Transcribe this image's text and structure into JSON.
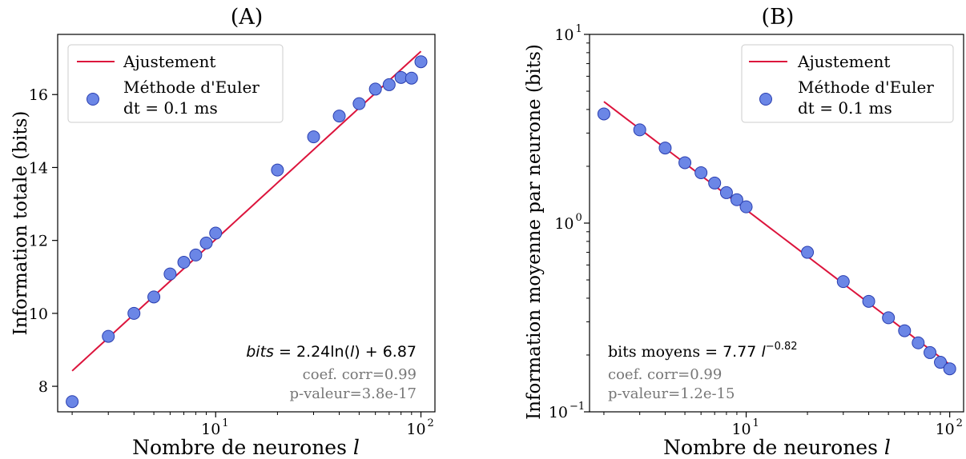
{
  "chart_data": [
    {
      "panel": "A",
      "type": "scatter",
      "title": "(A)",
      "xlabel_prefix": "Nombre de neurones ",
      "xlabel_var": "l",
      "ylabel": "Information totale (bits)",
      "x_scale": "log",
      "y_scale": "linear",
      "xlim": [
        1.7,
        117
      ],
      "ylim": [
        7.3,
        17.65
      ],
      "xticks": [
        {
          "v": 10,
          "label": "10",
          "exp": "1"
        },
        {
          "v": 100,
          "label": "10",
          "exp": "2"
        }
      ],
      "yticks": [
        8,
        10,
        12,
        14,
        16
      ],
      "series": [
        {
          "name": "Méthode d'Euler dt = 0.1 ms",
          "x": [
            2,
            3,
            4,
            5,
            6,
            7,
            8,
            9,
            10,
            20,
            30,
            40,
            50,
            60,
            70,
            80,
            90,
            100
          ],
          "y": [
            7.58,
            9.37,
            10.0,
            10.45,
            11.08,
            11.4,
            11.6,
            11.93,
            12.2,
            13.93,
            14.84,
            15.41,
            15.75,
            16.15,
            16.27,
            16.47,
            16.45,
            16.9
          ]
        }
      ],
      "fit": {
        "name": "Ajustement",
        "a": 2.24,
        "b": 6.87,
        "x_range": [
          2,
          100
        ]
      },
      "legend": {
        "fit_label": "Ajustement",
        "points_label_1": "Méthode d'Euler",
        "points_label_2": "dt = 0.1 ms",
        "position": "top-left"
      },
      "annotations": {
        "equation_pre": "bits",
        "equation_mid": " = 2.24ln(",
        "equation_var": "l",
        "equation_post": ") + 6.87",
        "corr": "coef. corr=0.99",
        "pval": "p-valeur=3.8e-17"
      }
    },
    {
      "panel": "B",
      "type": "scatter",
      "title": "(B)",
      "xlabel_prefix": "Nombre de neurones ",
      "xlabel_var": "l",
      "ylabel": "Information moyenne par neurone (bits)",
      "x_scale": "log",
      "y_scale": "log",
      "xlim": [
        1.7,
        117
      ],
      "ylim": [
        0.1,
        10
      ],
      "xticks": [
        {
          "v": 10,
          "label": "10",
          "exp": "1"
        },
        {
          "v": 100,
          "label": "10",
          "exp": "2"
        }
      ],
      "yticks": [
        {
          "v": 0.1,
          "label": "10",
          "exp": "−1"
        },
        {
          "v": 1,
          "label": "10",
          "exp": "0"
        },
        {
          "v": 10,
          "label": "10",
          "exp": "1"
        }
      ],
      "series": [
        {
          "name": "Méthode d'Euler dt = 0.1 ms",
          "x": [
            2,
            3,
            4,
            5,
            6,
            7,
            8,
            9,
            10,
            20,
            30,
            40,
            50,
            60,
            70,
            80,
            90,
            100
          ],
          "y": [
            3.79,
            3.12,
            2.5,
            2.09,
            1.85,
            1.63,
            1.45,
            1.33,
            1.22,
            0.7,
            0.49,
            0.385,
            0.315,
            0.269,
            0.232,
            0.206,
            0.183,
            0.169
          ]
        }
      ],
      "fit": {
        "name": "Ajustement",
        "a": 7.77,
        "b": -0.82,
        "x_range": [
          2,
          100
        ]
      },
      "legend": {
        "fit_label": "Ajustement",
        "points_label_1": "Méthode d'Euler",
        "points_label_2": "dt = 0.1 ms",
        "position": "top-right"
      },
      "annotations": {
        "equation_pre": "bits moyens ",
        "equation_mid": " = 7.77 ",
        "equation_var": "l",
        "equation_exp": "−0.82",
        "corr": "coef. corr=0.99",
        "pval": "p-valeur=1.2e-15"
      }
    }
  ],
  "colors": {
    "fit": "#dc143c",
    "marker_fill": "#6b86e6",
    "marker_edge": "#2a3fb0",
    "annot_gray": "#777777",
    "axis": "#000000"
  }
}
